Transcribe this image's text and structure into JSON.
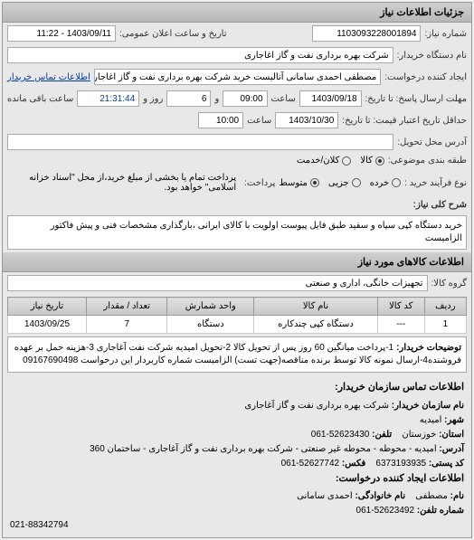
{
  "header": {
    "title": "جزئیات اطلاعات نیاز"
  },
  "form": {
    "request_number_label": "شماره نیاز:",
    "request_number": "1103093228001894",
    "announce_date_label": "تاریخ و ساعت اعلان عمومی:",
    "announce_date": "1403/09/11 - 11:22",
    "buyer_device_label": "نام دستگاه خریدار:",
    "buyer_device": "شرکت بهره برداری نفت و گاز اغاجاری",
    "creator_label": "ایجاد کننده درخواست:",
    "creator": "مصطفی احمدی سامانی آنالیست خرید شرکت بهره برداری نفت و گاز اغاجاری",
    "creator_link": "اطلاعات تماس خریدار",
    "deadline_label": "مهلت ارسال پاسخ: تا تاریخ:",
    "deadline_date": "1403/09/18",
    "deadline_time_label": "ساعت",
    "deadline_time": "09:00",
    "deadline_and": "و",
    "remaining_days": "6",
    "remaining_days_label": "روز و",
    "remaining_time": "21:31:44",
    "remaining_label": "ساعت باقی مانده",
    "validity_label": "حداقل تاریخ اعتبار قیمت: تا تاریخ:",
    "validity_date": "1403/10/30",
    "validity_time_label": "ساعت",
    "validity_time": "10:00",
    "delivery_address_label": "آدرس محل تحویل:",
    "delivery_address": "",
    "unit_label": "طبقه بندی موضوعی:",
    "quantity_label": "نوع فرآیند خرید :",
    "radio_options": {
      "fine": "خرده",
      "partial": "جزیی",
      "medium": "متوسط",
      "all_cash": "کلان/خدمت",
      "installment": "کالا"
    },
    "payment_note": "پرداخت تمام یا بخشی از مبلغ خرید،از محل \"اسناد خزانه اسلامی\" خواهد بود.",
    "payment_label": "پرداخت:"
  },
  "description": {
    "label": "شرح کلی نیاز:",
    "text": "خرید دستگاه کپی سیاه و سفید طبق فایل پیوست اولویت با کالای ایرانی ،بارگذاری مشخصات فنی و پیش فاکتور الزامیست"
  },
  "goods_header": "اطلاعات کالاهای مورد نیاز",
  "goods_group_label": "گروه کالا:",
  "goods_group": "تجهیزات خانگی، اداری و صنعتی",
  "table": {
    "headers": [
      "ردیف",
      "کد کالا",
      "نام کالا",
      "واحد شمارش",
      "تعداد / مقدار",
      "تاریخ نیاز"
    ],
    "rows": [
      [
        "1",
        "---",
        "دستگاه کپی چندکاره",
        "دستگاه",
        "7",
        "1403/09/25"
      ]
    ]
  },
  "buyer_notes": {
    "label": "توضیحات خریدار:",
    "text": "1-پرداخت میانگین 60 روز پس از تحویل کالا 2-تحویل امیدیه شرکت نفت آغاجاری 3-هزینه حمل بر عهده فروشنده4-ارسال نمونه کالا توسط برنده مناقصه(جهت تست) الزامیست شماره کاربردار این درخواست 09167690498"
  },
  "contact": {
    "header": "اطلاعات تماس سازمان خریدار:",
    "org_label": "نام سازمان خریدار:",
    "org": "شرکت بهره برداری نفت و گاز آغاجاری",
    "city_label": "شهر:",
    "city": "امیدیه",
    "province_label": "استان:",
    "province": "خوزستان",
    "phone_label": "تلفن:",
    "phone": "52623430-061",
    "address_label": "آدرس:",
    "address": "امیدیه - محوطه - محوطه غیر صنعتی - شرکت بهره برداری نفت و گاز آغاجاری - ساختمان 360",
    "postal_label": "کد پستی:",
    "postal": "6373193935",
    "fax_label": "فکس:",
    "fax": "52627742-061",
    "request_info_header": "اطلاعات ایجاد کننده درخواست:",
    "name_label": "نام:",
    "name": "مصطفی",
    "family_label": "نام خانوادگی:",
    "family": "احمدی سامانی",
    "req_phone_label": "شماره تلفن:",
    "req_phone": "52623492-061",
    "footer_phone": "021-88342794"
  }
}
